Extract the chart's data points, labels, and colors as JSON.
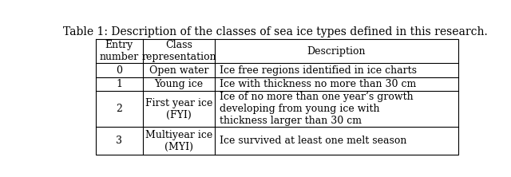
{
  "title": "Table 1: Description of the classes of sea ice types defined in this research.",
  "col_headers": [
    "Entry\nnumber",
    "Class\nrepresentation",
    "Description"
  ],
  "rows": [
    {
      "entry": "0",
      "class_rep": "Open water",
      "description": "Ice free regions identified in ice charts"
    },
    {
      "entry": "1",
      "class_rep": "Young ice",
      "description": "Ice with thickness no more than 30 cm"
    },
    {
      "entry": "2",
      "class_rep": "First year ice\n(FYI)",
      "description": "Ice of no more than one year’s growth\ndeveloping from young ice with\nthickness larger than 30 cm"
    },
    {
      "entry": "3",
      "class_rep": "Multiyear ice\n(MYI)",
      "description": "Ice survived at least one melt season"
    }
  ],
  "background_color": "#ffffff",
  "line_color": "#000000",
  "font_size": 9,
  "title_font_size": 10
}
